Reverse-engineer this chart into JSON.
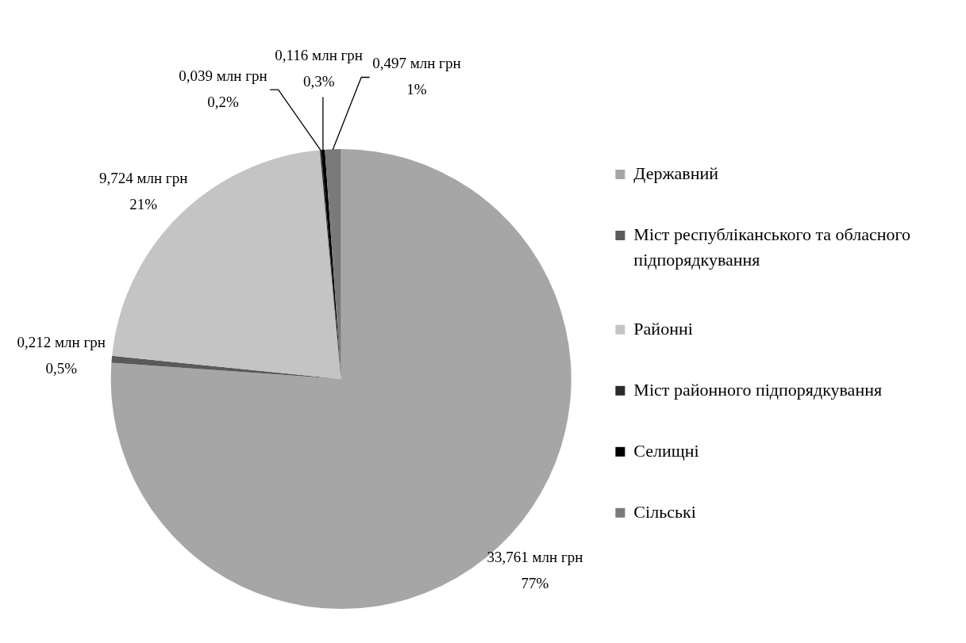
{
  "chart_data": {
    "type": "pie",
    "categories": [
      "Державний",
      "Міст республіканського та обласного підпорядкування",
      "Районні",
      "Міст районного підпорядкування",
      "Селищні",
      "Сільські"
    ],
    "values": [
      33.761,
      0.212,
      9.724,
      0.039,
      0.116,
      0.497
    ],
    "colors": [
      "#a6a6a6",
      "#5a5a5a",
      "#c4c4c4",
      "#2b2b2b",
      "#000000",
      "#7a7a7a"
    ],
    "value_labels": [
      "33,761 млн грн\n77%",
      "0,212 млн грн\n0,5%",
      "9,724 млн грн\n21%",
      "0,039 млн грн\n0,2%",
      "0,116 млн грн\n0,3%",
      "0,497 млн грн\n1%"
    ],
    "legend": "right"
  }
}
